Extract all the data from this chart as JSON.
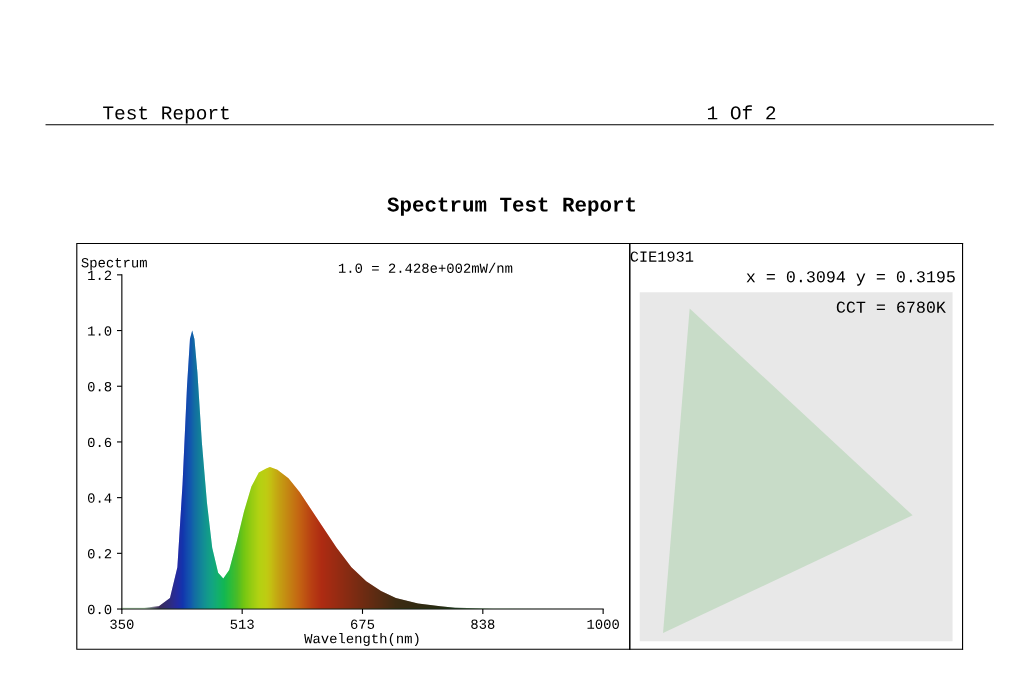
{
  "chart_data": [
    {
      "type": "area",
      "title": "Spectrum Test Report",
      "xlabel": "Wavelength(nm)",
      "ylabel": "Spectrum",
      "annotations": [
        "Test Report",
        "1 Of 2",
        "1.0 = 2.428e+002mW/nm"
      ],
      "x": [
        350,
        380,
        400,
        415,
        425,
        432,
        438,
        442,
        445,
        448,
        452,
        458,
        465,
        472,
        480,
        487,
        495,
        505,
        515,
        525,
        535,
        545,
        550,
        560,
        575,
        590,
        605,
        620,
        640,
        660,
        680,
        700,
        720,
        750,
        780,
        800,
        850,
        900,
        1000
      ],
      "series": [
        {
          "color": "#3a8f3a",
          "values": [
            0.005,
            0.005,
            0.01,
            0.04,
            0.15,
            0.45,
            0.8,
            0.97,
            1.0,
            0.97,
            0.85,
            0.6,
            0.38,
            0.22,
            0.13,
            0.11,
            0.14,
            0.24,
            0.35,
            0.44,
            0.49,
            0.505,
            0.51,
            0.5,
            0.47,
            0.42,
            0.36,
            0.3,
            0.22,
            0.15,
            0.1,
            0.065,
            0.04,
            0.02,
            0.01,
            0.005,
            0.002,
            0.001,
            0.0
          ],
          "colors": [
            "#ffffff",
            "#ffffff",
            "#3a0066",
            "#2a00a0",
            "#1a00d0",
            "#0010e0",
            "#0030e0",
            "#0040e0",
            "#0050d8",
            "#0060d0",
            "#0070c8",
            "#0088c0",
            "#00a0b0",
            "#00b0a0",
            "#00c080",
            "#00c860",
            "#20d040",
            "#50d020",
            "#90e000",
            "#c0e800",
            "#e8f000",
            "#f8e800",
            "#ffd800",
            "#ffb000",
            "#ff8000",
            "#ff5000",
            "#f02000",
            "#e00000",
            "#c00000",
            "#a00000",
            "#800000",
            "#600000",
            "#400000",
            "#300000",
            "#200000",
            "#181818",
            "#ffffff",
            "#ffffff",
            "#ffffff"
          ]
        }
      ],
      "xlim": [
        350,
        1000
      ],
      "ylim": [
        0,
        1.2
      ],
      "xticks": [
        350,
        {
          "value": 512.5,
          "label": "513"
        },
        675,
        {
          "value": 837.5,
          "label": "838"
        },
        1000
      ],
      "yticks": [
        {
          "value": 0,
          "label": "0.0"
        },
        0.2,
        0.4,
        0.6,
        0.8,
        {
          "value": 1.0,
          "label": "1.0"
        },
        1.2
      ],
      "grid": false
    },
    {
      "type": "other",
      "title": "CIE1931",
      "annotations": [
        "x = 0.3094 y = 0.3195",
        "CCT = 6780K"
      ]
    }
  ]
}
